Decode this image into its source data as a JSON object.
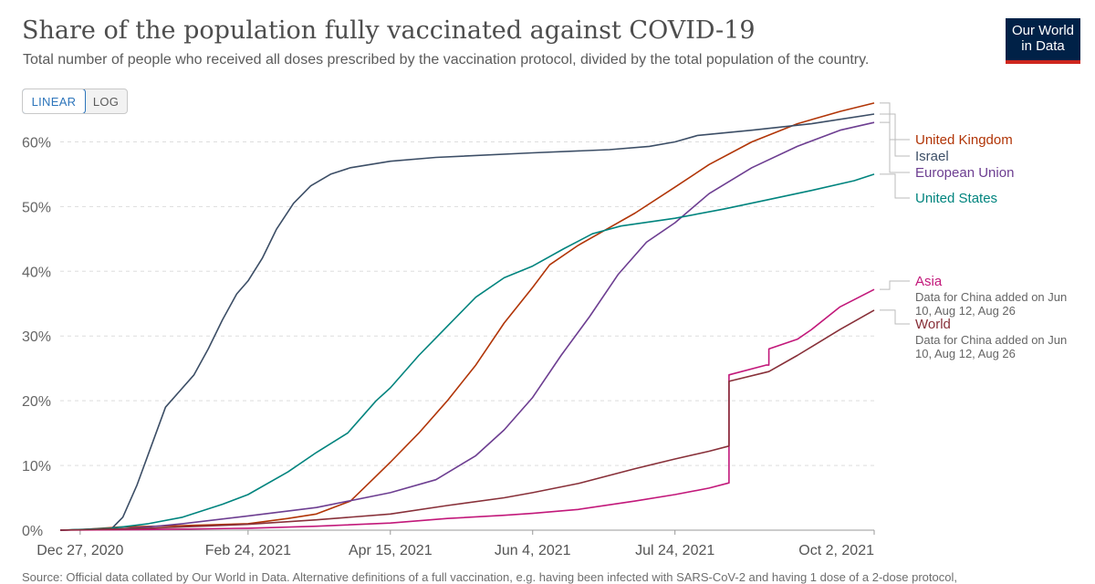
{
  "title": "Share of the population fully vaccinated against COVID-19",
  "subtitle": "Total number of people who received all doses prescribed by the vaccination protocol, divided by the total population of the country.",
  "logo": {
    "line1": "Our World",
    "line2": "in Data"
  },
  "scale_toggle": {
    "linear_label": "LINEAR",
    "log_label": "LOG",
    "selected": "LINEAR"
  },
  "footer": "Source: Official data collated by Our World in Data. Alternative definitions of a full vaccination, e.g. having been infected with SARS-CoV-2 and having 1 dose of a 2-dose protocol,",
  "chart_data": {
    "type": "line",
    "title": "Share of the population fully vaccinated against COVID-19",
    "xlabel": "",
    "ylabel": "",
    "x_type": "date",
    "xlim": [
      "2020-12-20",
      "2021-10-02"
    ],
    "ylim": [
      0,
      65
    ],
    "yticks": [
      {
        "value": 0,
        "label": "0%"
      },
      {
        "value": 10,
        "label": "10%"
      },
      {
        "value": 20,
        "label": "20%"
      },
      {
        "value": 30,
        "label": "30%"
      },
      {
        "value": 40,
        "label": "40%"
      },
      {
        "value": 50,
        "label": "50%"
      },
      {
        "value": 60,
        "label": "60%"
      }
    ],
    "xticks": [
      {
        "value": "2020-12-27",
        "label": "Dec 27, 2020"
      },
      {
        "value": "2021-02-24",
        "label": "Feb 24, 2021"
      },
      {
        "value": "2021-04-15",
        "label": "Apr 15, 2021"
      },
      {
        "value": "2021-06-04",
        "label": "Jun 4, 2021"
      },
      {
        "value": "2021-07-24",
        "label": "Jul 24, 2021"
      },
      {
        "value": "2021-10-02",
        "label": "Oct 2, 2021"
      }
    ],
    "grid": true,
    "legend": "right",
    "series": [
      {
        "name": "United Kingdom",
        "color": "#b13507",
        "points": [
          [
            "2020-12-20",
            0
          ],
          [
            "2020-12-28",
            0.1
          ],
          [
            "2021-01-10",
            0.5
          ],
          [
            "2021-02-01",
            0.7
          ],
          [
            "2021-02-24",
            1
          ],
          [
            "2021-03-10",
            1.8
          ],
          [
            "2021-03-20",
            2.5
          ],
          [
            "2021-04-01",
            4.5
          ],
          [
            "2021-04-08",
            7.5
          ],
          [
            "2021-04-15",
            10.5
          ],
          [
            "2021-04-25",
            15
          ],
          [
            "2021-05-05",
            20
          ],
          [
            "2021-05-15",
            25.5
          ],
          [
            "2021-05-25",
            32
          ],
          [
            "2021-06-04",
            37.5
          ],
          [
            "2021-06-10",
            41
          ],
          [
            "2021-06-20",
            44
          ],
          [
            "2021-06-30",
            46.5
          ],
          [
            "2021-07-10",
            49
          ],
          [
            "2021-07-24",
            53
          ],
          [
            "2021-08-05",
            56.5
          ],
          [
            "2021-08-20",
            60
          ],
          [
            "2021-09-05",
            62.8
          ],
          [
            "2021-09-20",
            64.7
          ],
          [
            "2021-10-02",
            66
          ]
        ]
      },
      {
        "name": "Israel",
        "color": "#3c4e66",
        "points": [
          [
            "2020-12-20",
            0
          ],
          [
            "2021-01-07",
            0.2
          ],
          [
            "2021-01-11",
            2
          ],
          [
            "2021-01-16",
            7
          ],
          [
            "2021-01-21",
            13
          ],
          [
            "2021-01-26",
            19
          ],
          [
            "2021-01-31",
            21.5
          ],
          [
            "2021-02-05",
            24
          ],
          [
            "2021-02-10",
            28
          ],
          [
            "2021-02-15",
            32.5
          ],
          [
            "2021-02-20",
            36.5
          ],
          [
            "2021-02-24",
            38.5
          ],
          [
            "2021-03-01",
            42
          ],
          [
            "2021-03-06",
            46.5
          ],
          [
            "2021-03-12",
            50.5
          ],
          [
            "2021-03-18",
            53.2
          ],
          [
            "2021-03-25",
            55
          ],
          [
            "2021-04-01",
            56
          ],
          [
            "2021-04-15",
            57
          ],
          [
            "2021-05-01",
            57.6
          ],
          [
            "2021-06-04",
            58.3
          ],
          [
            "2021-07-01",
            58.8
          ],
          [
            "2021-07-15",
            59.3
          ],
          [
            "2021-07-24",
            60
          ],
          [
            "2021-08-01",
            61
          ],
          [
            "2021-08-20",
            61.8
          ],
          [
            "2021-09-10",
            62.8
          ],
          [
            "2021-10-02",
            64.3
          ]
        ]
      },
      {
        "name": "European Union",
        "color": "#6d3e91",
        "points": [
          [
            "2020-12-20",
            0
          ],
          [
            "2021-01-10",
            0.2
          ],
          [
            "2021-01-20",
            0.5
          ],
          [
            "2021-02-01",
            1
          ],
          [
            "2021-02-24",
            2.2
          ],
          [
            "2021-03-20",
            3.5
          ],
          [
            "2021-04-15",
            5.8
          ],
          [
            "2021-05-01",
            7.8
          ],
          [
            "2021-05-15",
            11.5
          ],
          [
            "2021-05-25",
            15.5
          ],
          [
            "2021-06-04",
            20.5
          ],
          [
            "2021-06-14",
            27
          ],
          [
            "2021-06-24",
            33
          ],
          [
            "2021-07-04",
            39.5
          ],
          [
            "2021-07-14",
            44.5
          ],
          [
            "2021-07-24",
            47.5
          ],
          [
            "2021-08-05",
            52
          ],
          [
            "2021-08-20",
            56
          ],
          [
            "2021-09-05",
            59.3
          ],
          [
            "2021-09-20",
            61.8
          ],
          [
            "2021-10-02",
            63
          ]
        ]
      },
      {
        "name": "United States",
        "color": "#00847e",
        "points": [
          [
            "2020-12-20",
            0
          ],
          [
            "2021-01-07",
            0.3
          ],
          [
            "2021-01-20",
            1
          ],
          [
            "2021-02-01",
            2
          ],
          [
            "2021-02-15",
            4
          ],
          [
            "2021-02-24",
            5.5
          ],
          [
            "2021-03-10",
            9
          ],
          [
            "2021-03-20",
            12
          ],
          [
            "2021-03-31",
            15
          ],
          [
            "2021-04-10",
            20
          ],
          [
            "2021-04-15",
            22
          ],
          [
            "2021-04-25",
            27
          ],
          [
            "2021-05-05",
            31.5
          ],
          [
            "2021-05-15",
            36
          ],
          [
            "2021-05-25",
            39
          ],
          [
            "2021-06-04",
            40.8
          ],
          [
            "2021-06-15",
            43.5
          ],
          [
            "2021-06-25",
            45.8
          ],
          [
            "2021-07-05",
            47
          ],
          [
            "2021-07-24",
            48.2
          ],
          [
            "2021-08-10",
            49.6
          ],
          [
            "2021-08-25",
            51
          ],
          [
            "2021-09-10",
            52.5
          ],
          [
            "2021-09-25",
            54
          ],
          [
            "2021-10-02",
            55
          ]
        ]
      },
      {
        "name": "Asia",
        "color": "#c2187a",
        "points": [
          [
            "2020-12-20",
            0
          ],
          [
            "2021-01-20",
            0.1
          ],
          [
            "2021-02-24",
            0.3
          ],
          [
            "2021-03-20",
            0.6
          ],
          [
            "2021-04-15",
            1.1
          ],
          [
            "2021-05-05",
            1.8
          ],
          [
            "2021-05-25",
            2.3
          ],
          [
            "2021-06-04",
            2.6
          ],
          [
            "2021-06-20",
            3.2
          ],
          [
            "2021-07-10",
            4.5
          ],
          [
            "2021-07-24",
            5.5
          ],
          [
            "2021-08-05",
            6.5
          ],
          [
            "2021-08-12",
            7.3
          ],
          [
            "2021-08-12",
            24
          ],
          [
            "2021-08-25",
            25.5
          ],
          [
            "2021-08-26",
            25.5
          ],
          [
            "2021-08-26",
            28
          ],
          [
            "2021-09-05",
            29.5
          ],
          [
            "2021-09-10",
            31
          ],
          [
            "2021-09-20",
            34.5
          ],
          [
            "2021-10-02",
            37.2
          ]
        ]
      },
      {
        "name": "World",
        "color": "#883039",
        "points": [
          [
            "2020-12-20",
            0
          ],
          [
            "2021-01-20",
            0.3
          ],
          [
            "2021-02-24",
            0.9
          ],
          [
            "2021-03-20",
            1.6
          ],
          [
            "2021-04-15",
            2.5
          ],
          [
            "2021-05-05",
            3.8
          ],
          [
            "2021-05-25",
            5
          ],
          [
            "2021-06-04",
            5.8
          ],
          [
            "2021-06-20",
            7.2
          ],
          [
            "2021-07-10",
            9.5
          ],
          [
            "2021-07-24",
            11
          ],
          [
            "2021-08-05",
            12.2
          ],
          [
            "2021-08-12",
            13
          ],
          [
            "2021-08-12",
            23
          ],
          [
            "2021-08-26",
            24.5
          ],
          [
            "2021-09-05",
            27
          ],
          [
            "2021-09-20",
            31
          ],
          [
            "2021-10-02",
            34
          ]
        ]
      }
    ],
    "legend_entries": [
      {
        "name": "United Kingdom",
        "note": ""
      },
      {
        "name": "Israel",
        "note": ""
      },
      {
        "name": "European Union",
        "note": ""
      },
      {
        "name": "United States",
        "note": ""
      },
      {
        "name": "Asia",
        "note_lines": [
          "Data for China added on Jun",
          "10, Aug 12, Aug 26"
        ]
      },
      {
        "name": "World",
        "note_lines": [
          "Data for China added on Jun",
          "10, Aug 12, Aug 26"
        ]
      }
    ]
  }
}
